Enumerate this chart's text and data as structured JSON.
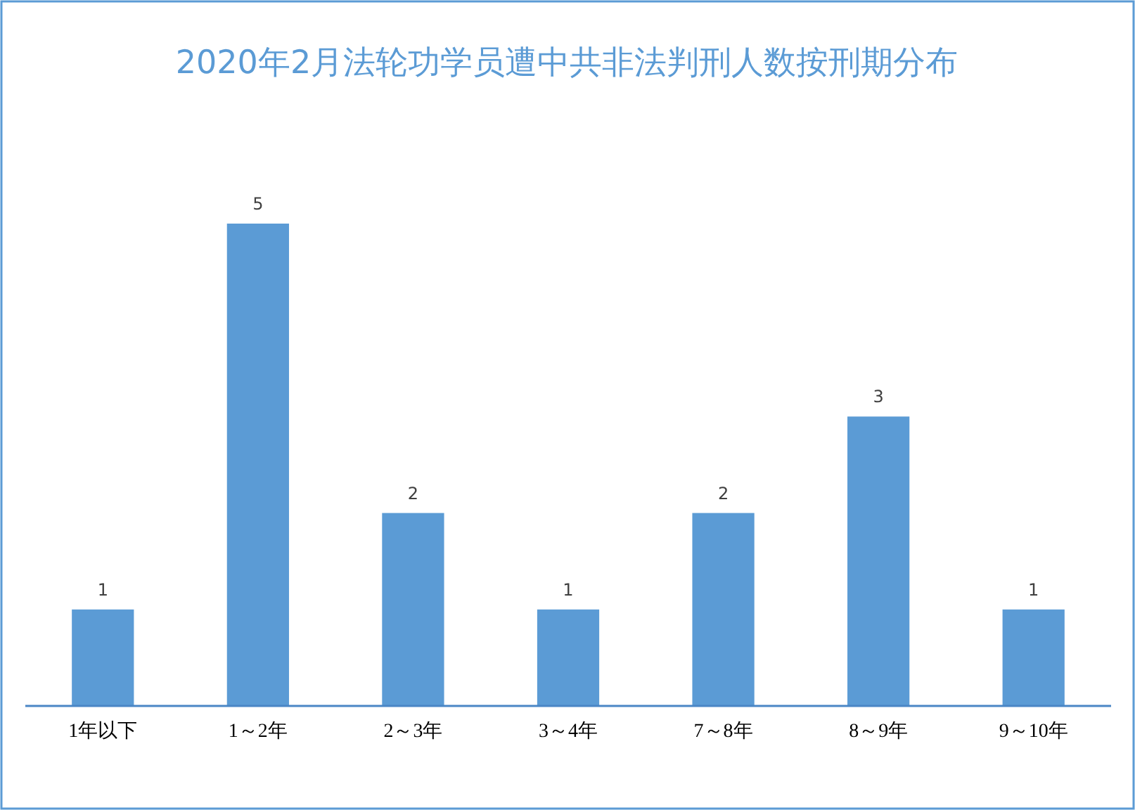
{
  "chart_data": {
    "type": "bar",
    "title": "2020年2月法轮功学员遭中共非法判刑人数按刑期分布",
    "categories": [
      "1年以下",
      "1～2年",
      "2～3年",
      "3～4年",
      "7～8年",
      "8～9年",
      "9～10年"
    ],
    "values": [
      1,
      5,
      2,
      1,
      2,
      3,
      1
    ],
    "color": "#5b9bd5",
    "data_labels": true
  }
}
